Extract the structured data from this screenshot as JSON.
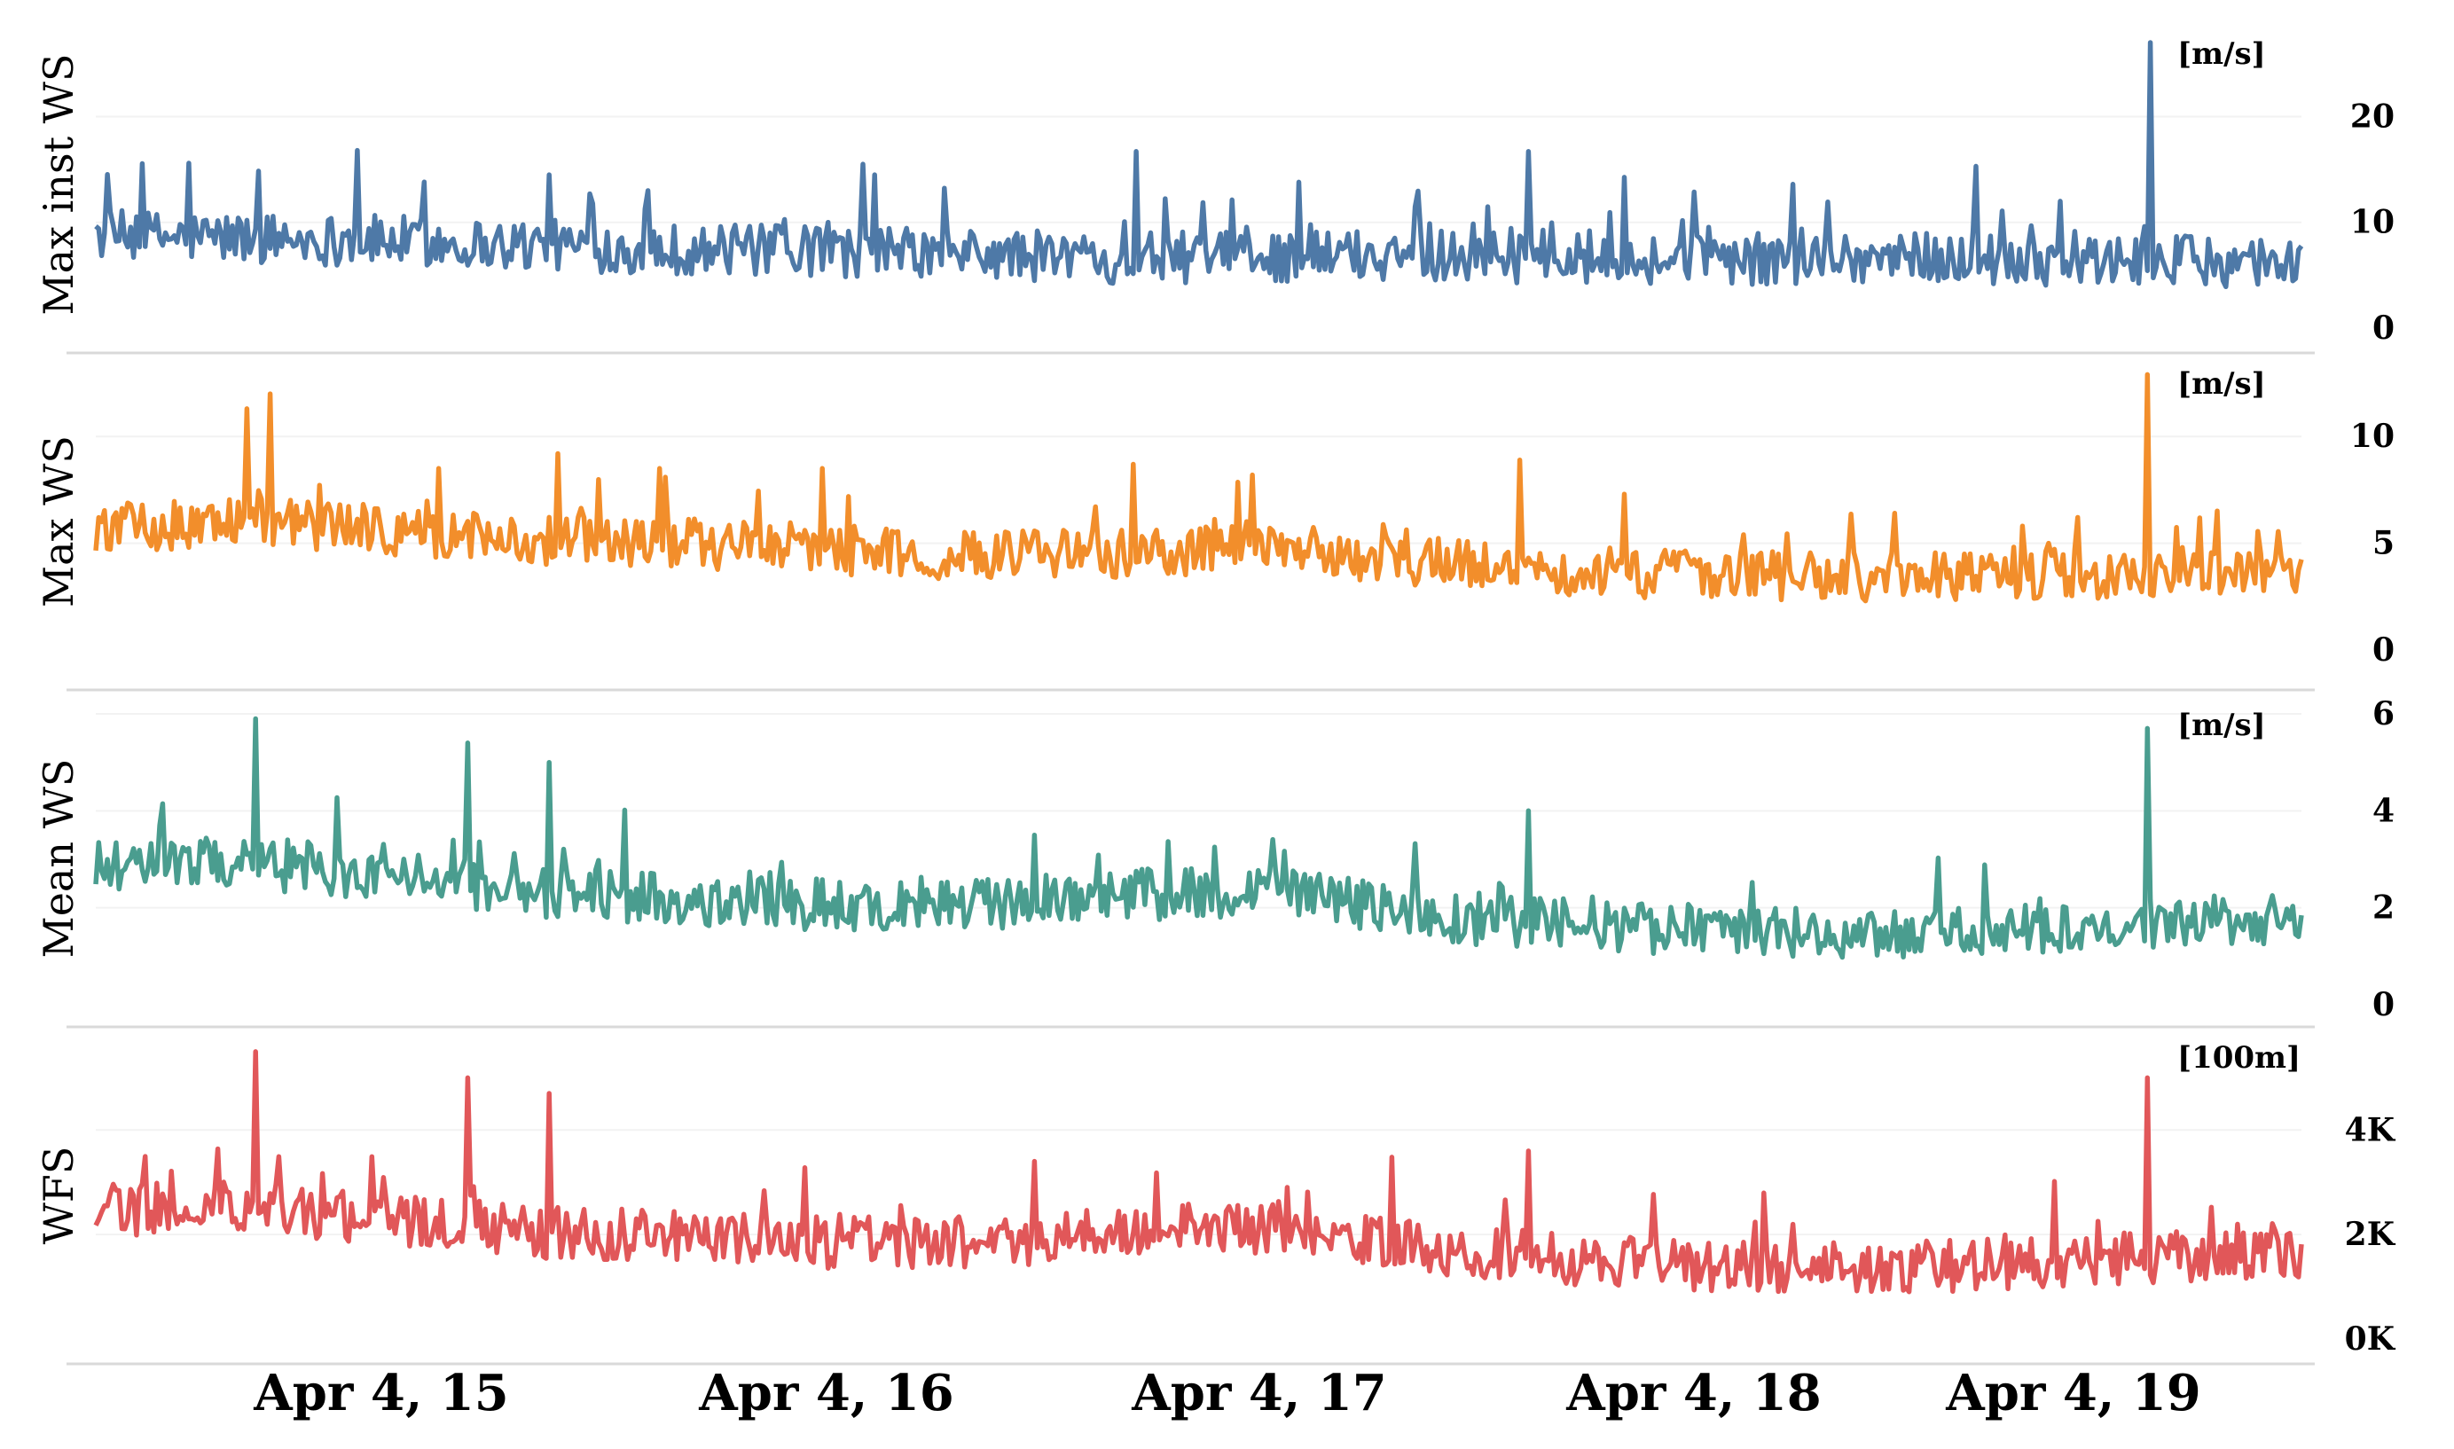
{
  "chart_data": {
    "type": "line",
    "x_ticks": [
      "Apr 4, 15",
      "Apr 4, 16",
      "Apr 4, 17",
      "Apr 4, 18",
      "Apr 4, 19"
    ],
    "panels": [
      {
        "ylabel": "Max inst WS",
        "unit": "[m/s]",
        "color": "#4e79a7",
        "ylim": [
          0,
          27
        ],
        "yticks": [
          {
            "v": 0,
            "label": "0"
          },
          {
            "v": 10,
            "label": "10"
          },
          {
            "v": 20,
            "label": "20"
          }
        ],
        "baseline": [
          8.5,
          8.3,
          8.0,
          7.6,
          7.2,
          7.0,
          6.7,
          6.4,
          6.5,
          6.8,
          6.2,
          6.2,
          6.5,
          6.3,
          6.0,
          6.2
        ],
        "spikes": [
          [
            4.2,
            15.6
          ],
          [
            11.8,
            16.8
          ],
          [
            20.5,
            14.5
          ],
          [
            34.8,
            15.5
          ],
          [
            47.2,
            16.7
          ],
          [
            54.5,
            13.8
          ],
          [
            65.0,
            16.7
          ],
          [
            77.0,
            13.6
          ],
          [
            85.3,
            15.3
          ],
          [
            89.0,
            12.0
          ],
          [
            93.1,
            27.0
          ]
        ]
      },
      {
        "ylabel": "Max WS",
        "unit": "[m/s]",
        "color": "#f28e2b",
        "ylim": [
          0,
          13
        ],
        "yticks": [
          {
            "v": 0,
            "label": "0"
          },
          {
            "v": 5,
            "label": "5"
          },
          {
            "v": 10,
            "label": "10"
          }
        ],
        "baseline": [
          5.5,
          6.0,
          5.5,
          5.0,
          4.9,
          4.5,
          4.3,
          4.4,
          4.8,
          4.0,
          3.6,
          3.4,
          3.3,
          3.4,
          3.5,
          3.6
        ],
        "spikes": [
          [
            6.8,
            11.3
          ],
          [
            7.9,
            12.0
          ],
          [
            21.0,
            9.2
          ],
          [
            25.6,
            8.5
          ],
          [
            33.0,
            8.5
          ],
          [
            47.0,
            8.7
          ],
          [
            52.5,
            8.2
          ],
          [
            64.5,
            8.9
          ],
          [
            69.3,
            7.3
          ],
          [
            93.0,
            12.9
          ]
        ]
      },
      {
        "ylabel": "Mean WS",
        "unit": "[m/s]",
        "color": "#4a9d8f",
        "ylim": [
          0,
          6
        ],
        "yticks": [
          {
            "v": 0,
            "label": "0"
          },
          {
            "v": 2,
            "label": "2"
          },
          {
            "v": 4,
            "label": "4"
          },
          {
            "v": 6,
            "label": "6"
          }
        ],
        "baseline": [
          2.8,
          2.9,
          2.6,
          2.3,
          2.1,
          2.0,
          2.0,
          2.2,
          2.3,
          1.8,
          1.6,
          1.4,
          1.4,
          1.5,
          1.6,
          1.7
        ],
        "spikes": [
          [
            7.2,
            5.9
          ],
          [
            16.8,
            5.4
          ],
          [
            20.5,
            5.0
          ],
          [
            42.5,
            3.5
          ],
          [
            65.0,
            4.0
          ],
          [
            93.0,
            5.7
          ]
        ]
      },
      {
        "ylabel": "WFS",
        "unit": "[100m]",
        "color": "#e15759",
        "ylim": [
          0,
          5600
        ],
        "yticks": [
          {
            "v": 0,
            "label": "0K"
          },
          {
            "v": 2000,
            "label": "2K"
          },
          {
            "v": 4000,
            "label": "4K"
          }
        ],
        "baseline": [
          2400,
          2500,
          2200,
          2000,
          1900,
          1800,
          1800,
          2000,
          2100,
          1700,
          1500,
          1300,
          1300,
          1400,
          1500,
          1600
        ],
        "spikes": [
          [
            7.2,
            5500
          ],
          [
            16.8,
            5000
          ],
          [
            20.5,
            4700
          ],
          [
            42.5,
            3400
          ],
          [
            65.0,
            3600
          ],
          [
            93.0,
            5000
          ]
        ]
      }
    ]
  }
}
